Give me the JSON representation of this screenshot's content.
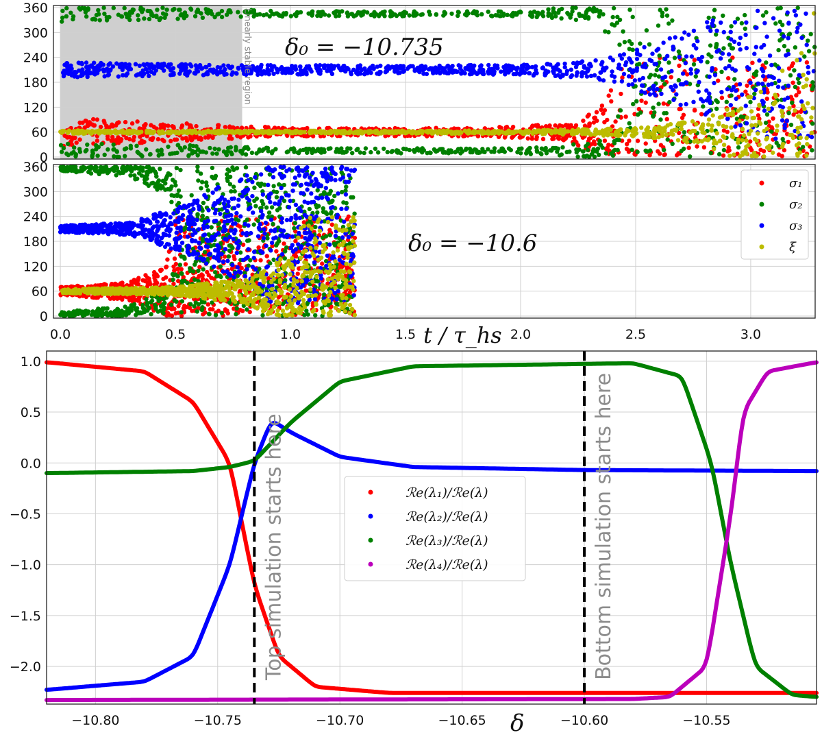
{
  "chart_data": [
    {
      "type": "scatter",
      "panel": "top",
      "annotation": "δ₀ = −10.735",
      "shaded_region_label": "Linearly stable region",
      "shaded_region_x": [
        0.0,
        0.79
      ],
      "xlim": [
        -0.03,
        3.28
      ],
      "ylim": [
        -5,
        365
      ],
      "yticks": [
        0,
        60,
        120,
        180,
        240,
        300,
        360
      ],
      "grid": true,
      "x_end": 3.28,
      "series": [
        {
          "name": "σ₁",
          "color": "#ff0000",
          "center": 60,
          "band": [
            [
              0.0,
              35
            ],
            [
              0.5,
              22
            ],
            [
              1.0,
              10
            ],
            [
              1.8,
              10
            ],
            [
              2.2,
              20
            ],
            [
              2.35,
              60
            ],
            [
              2.45,
              180
            ],
            [
              3.28,
              180
            ]
          ]
        },
        {
          "name": "σ₂",
          "color": "#008000",
          "lower_center": 15,
          "upper_center": 345,
          "band": [
            [
              0.0,
              20
            ],
            [
              0.5,
              14
            ],
            [
              1.0,
              6
            ],
            [
              2.0,
              6
            ],
            [
              2.3,
              20
            ],
            [
              2.4,
              60
            ],
            [
              2.5,
              180
            ],
            [
              3.28,
              180
            ]
          ]
        },
        {
          "name": "σ₃",
          "color": "#0000ff",
          "center": 210,
          "band": [
            [
              0.0,
              18
            ],
            [
              0.8,
              12
            ],
            [
              1.5,
              10
            ],
            [
              2.0,
              12
            ],
            [
              2.3,
              22
            ],
            [
              2.45,
              40
            ],
            [
              2.7,
              90
            ],
            [
              3.0,
              160
            ],
            [
              3.28,
              180
            ]
          ]
        },
        {
          "name": "ξ",
          "color": "#bcbc00",
          "center": 60,
          "band": [
            [
              0.0,
              4
            ],
            [
              1.0,
              3
            ],
            [
              2.0,
              4
            ],
            [
              2.5,
              10
            ],
            [
              2.8,
              30
            ],
            [
              3.1,
              120
            ],
            [
              3.28,
              300
            ]
          ]
        }
      ]
    },
    {
      "type": "scatter",
      "panel": "middle",
      "annotation": "δ₀ = −10.6",
      "xlabel": "t / τ_hs",
      "xlim": [
        -0.03,
        3.28
      ],
      "ylim": [
        -5,
        365
      ],
      "xticks": [
        "0.0",
        "0.5",
        "1.0",
        "1.5",
        "2.0",
        "2.5",
        "3.0"
      ],
      "yticks": [
        0,
        60,
        120,
        180,
        240,
        300,
        360
      ],
      "grid": true,
      "legend": "top-right",
      "x_end": 1.28,
      "series": [
        {
          "name": "σ₁",
          "color": "#ff0000",
          "center": 60,
          "band": [
            [
              0.0,
              10
            ],
            [
              0.3,
              22
            ],
            [
              0.45,
              60
            ],
            [
              0.5,
              180
            ],
            [
              1.28,
              180
            ]
          ]
        },
        {
          "name": "σ₂",
          "color": "#008000",
          "lower_center": 5,
          "upper_center": 355,
          "band": [
            [
              0.0,
              5
            ],
            [
              0.3,
              20
            ],
            [
              0.45,
              60
            ],
            [
              0.55,
              180
            ],
            [
              1.28,
              180
            ]
          ]
        },
        {
          "name": "σ₃",
          "color": "#0000ff",
          "center": 210,
          "band": [
            [
              0.0,
              8
            ],
            [
              0.3,
              15
            ],
            [
              0.55,
              60
            ],
            [
              0.75,
              120
            ],
            [
              0.9,
              180
            ],
            [
              1.28,
              180
            ]
          ]
        },
        {
          "name": "ξ",
          "color": "#bcbc00",
          "center": 60,
          "band": [
            [
              0.0,
              5
            ],
            [
              0.5,
              10
            ],
            [
              0.8,
              30
            ],
            [
              1.0,
              90
            ],
            [
              1.05,
              180
            ],
            [
              1.28,
              180
            ]
          ]
        }
      ]
    },
    {
      "type": "line",
      "panel": "bottom",
      "xlabel": "δ",
      "xlim": [
        -10.82,
        -10.505
      ],
      "ylim": [
        -2.37,
        1.1
      ],
      "xticks": [
        "−10.80",
        "−10.75",
        "−10.70",
        "−10.65",
        "−10.60",
        "−10.55"
      ],
      "xtick_values": [
        -10.8,
        -10.75,
        -10.7,
        -10.65,
        -10.6,
        -10.55
      ],
      "yticks": [
        "1.0",
        "0.5",
        "0.0",
        "−0.5",
        "−1.0",
        "−1.5",
        "−2.0"
      ],
      "ytick_values": [
        1.0,
        0.5,
        0.0,
        -0.5,
        -1.0,
        -1.5,
        -2.0
      ],
      "grid": true,
      "legend": "center",
      "vlines": [
        {
          "x": -10.735,
          "label": "Top simulation starts here"
        },
        {
          "x": -10.6,
          "label": "Bottom simulation starts here"
        }
      ],
      "series": [
        {
          "name": "ℛe(λ₁)/ℛe(λ)",
          "color": "#ff0000",
          "points": [
            [
              -10.82,
              0.99
            ],
            [
              -10.78,
              0.9
            ],
            [
              -10.76,
              0.6
            ],
            [
              -10.745,
              0.0
            ],
            [
              -10.735,
              -1.2
            ],
            [
              -10.725,
              -1.9
            ],
            [
              -10.71,
              -2.2
            ],
            [
              -10.68,
              -2.26
            ],
            [
              -10.6,
              -2.26
            ],
            [
              -10.505,
              -2.26
            ]
          ]
        },
        {
          "name": "ℛe(λ₂)/ℛe(λ)",
          "color": "#0000ff",
          "points": [
            [
              -10.82,
              -2.23
            ],
            [
              -10.78,
              -2.15
            ],
            [
              -10.76,
              -1.9
            ],
            [
              -10.745,
              -1.0
            ],
            [
              -10.735,
              0.0
            ],
            [
              -10.728,
              0.42
            ],
            [
              -10.72,
              0.3
            ],
            [
              -10.7,
              0.06
            ],
            [
              -10.67,
              -0.04
            ],
            [
              -10.6,
              -0.07
            ],
            [
              -10.505,
              -0.08
            ]
          ]
        },
        {
          "name": "ℛe(λ₃)/ℛe(λ)",
          "color": "#008000",
          "points": [
            [
              -10.82,
              -0.1
            ],
            [
              -10.76,
              -0.08
            ],
            [
              -10.745,
              -0.04
            ],
            [
              -10.735,
              0.02
            ],
            [
              -10.72,
              0.4
            ],
            [
              -10.7,
              0.8
            ],
            [
              -10.67,
              0.95
            ],
            [
              -10.58,
              0.98
            ],
            [
              -10.56,
              0.85
            ],
            [
              -10.548,
              0.0
            ],
            [
              -10.54,
              -1.0
            ],
            [
              -10.53,
              -2.0
            ],
            [
              -10.515,
              -2.28
            ],
            [
              -10.505,
              -2.3
            ]
          ]
        },
        {
          "name": "ℛe(λ₄)/ℛe(λ)",
          "color": "#bb00bb",
          "points": [
            [
              -10.82,
              -2.33
            ],
            [
              -10.58,
              -2.32
            ],
            [
              -10.565,
              -2.3
            ],
            [
              -10.55,
              -2.0
            ],
            [
              -10.54,
              -0.5
            ],
            [
              -10.535,
              0.5
            ],
            [
              -10.525,
              0.9
            ],
            [
              -10.505,
              0.99
            ]
          ]
        }
      ]
    }
  ]
}
